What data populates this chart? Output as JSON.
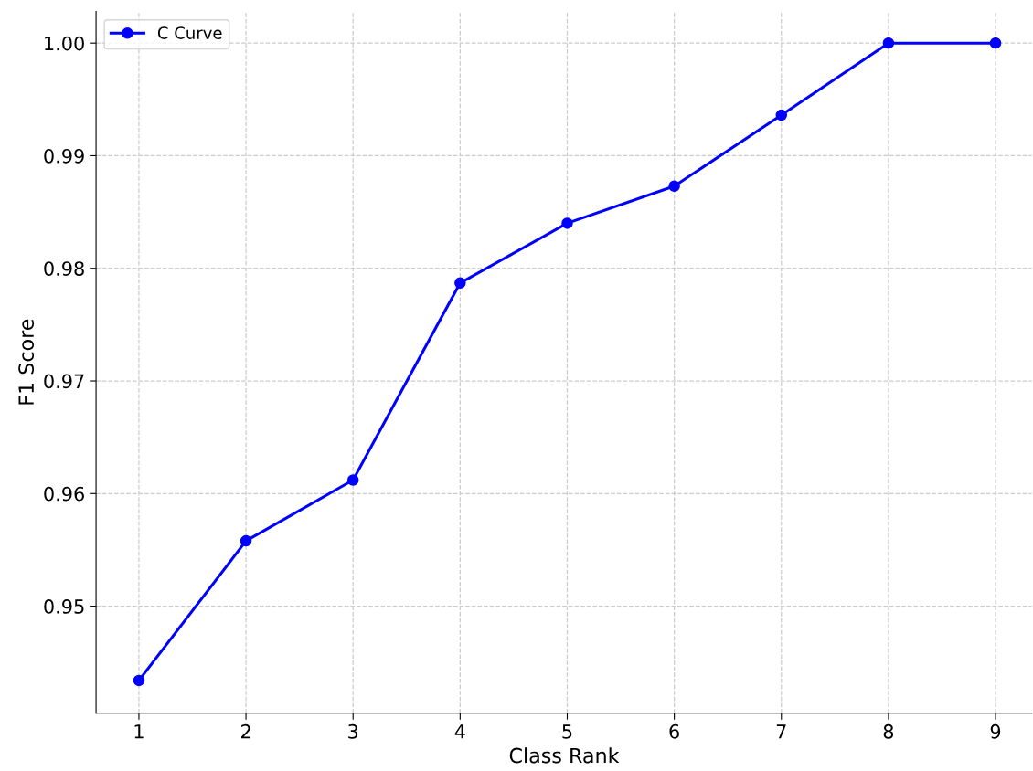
{
  "chart_data": {
    "type": "line",
    "xlabel": "Class Rank",
    "ylabel": "F1 Score",
    "x": [
      1,
      2,
      3,
      4,
      5,
      6,
      7,
      8,
      9
    ],
    "series": [
      {
        "name": "C Curve",
        "color": "#0000ff",
        "values": [
          0.9434,
          0.9558,
          0.9612,
          0.9787,
          0.984,
          0.9873,
          0.9936,
          1.0,
          1.0
        ]
      }
    ],
    "xlim": [
      0.6,
      9.34
    ],
    "xticks": [
      1,
      2,
      3,
      4,
      5,
      6,
      7,
      8,
      9
    ],
    "ylim": [
      0.9405,
      1.0028
    ],
    "yticks": [
      {
        "value": 0.95,
        "label": "0.95"
      },
      {
        "value": 0.96,
        "label": "0.96"
      },
      {
        "value": 0.97,
        "label": "0.97"
      },
      {
        "value": 0.98,
        "label": "0.98"
      },
      {
        "value": 0.99,
        "label": "0.99"
      },
      {
        "value": 1.0,
        "label": "1.00"
      }
    ],
    "grid": true,
    "legend": "top left",
    "marker": "circle",
    "line_style": "solid"
  }
}
